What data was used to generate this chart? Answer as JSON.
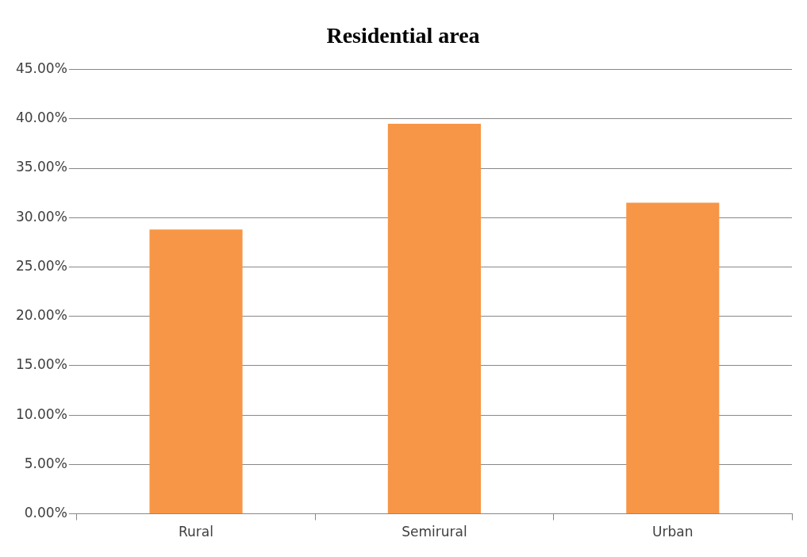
{
  "chart_data": {
    "type": "bar",
    "title": "Residential area",
    "categories": [
      "Rural",
      "Semirural",
      "Urban"
    ],
    "values": [
      28.8,
      39.5,
      31.5
    ],
    "color": "#f79646",
    "ylim": [
      0,
      45
    ],
    "yticks": [
      {
        "value": 0,
        "label": "0.00%"
      },
      {
        "value": 5,
        "label": "5.00%"
      },
      {
        "value": 10,
        "label": "10.00%"
      },
      {
        "value": 15,
        "label": "15.00%"
      },
      {
        "value": 20,
        "label": "20.00%"
      },
      {
        "value": 25,
        "label": "25.00%"
      },
      {
        "value": 30,
        "label": "30.00%"
      },
      {
        "value": 35,
        "label": "35.00%"
      },
      {
        "value": 40,
        "label": "40.00%"
      },
      {
        "value": 45,
        "label": "45.00%"
      }
    ],
    "grid": "y"
  }
}
